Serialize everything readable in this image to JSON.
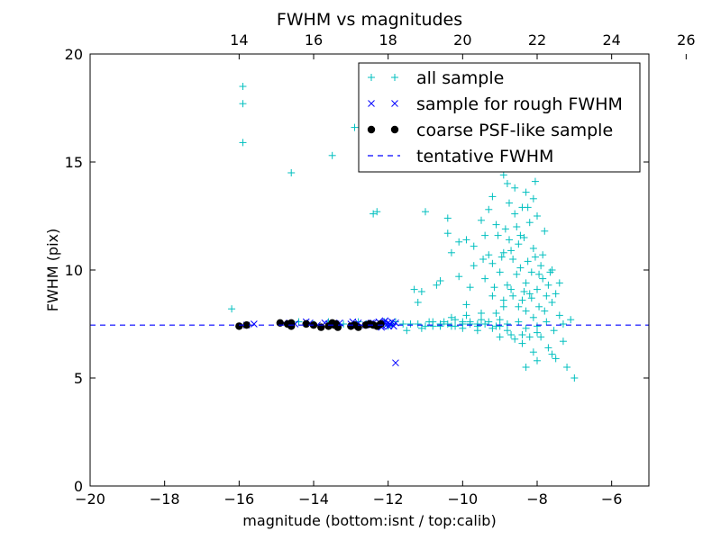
{
  "chart_data": {
    "type": "scatter",
    "title": "FWHM vs magnitudes",
    "xlabel": "magnitude (bottom:isnt / top:calib)",
    "ylabel": "FWHM (pix)",
    "xlim": [
      -20,
      -5
    ],
    "ylim": [
      0,
      20
    ],
    "x_ticks": [
      -20,
      -18,
      -16,
      -14,
      -12,
      -10,
      -8,
      -6
    ],
    "x_tick_labels": [
      "−20",
      "−18",
      "−16",
      "−14",
      "−12",
      "−10",
      "−8",
      "−6"
    ],
    "y_ticks": [
      0,
      5,
      10,
      15,
      20
    ],
    "y_tick_labels": [
      "0",
      "5",
      "10",
      "15",
      "20"
    ],
    "top_ticks": [
      14,
      16,
      18,
      20,
      22,
      24,
      26
    ],
    "top_tick_labels": [
      "14",
      "16",
      "18",
      "20",
      "22",
      "24",
      "26"
    ],
    "top_axis_offset": 30.0,
    "grid": false,
    "legend_position": "top-right",
    "series": [
      {
        "name": "all sample",
        "marker": "plus",
        "color": "#00bfbf",
        "points": [
          [
            -16.2,
            8.2
          ],
          [
            -15.9,
            18.5
          ],
          [
            -15.9,
            17.7
          ],
          [
            -15.9,
            15.9
          ],
          [
            -14.6,
            14.5
          ],
          [
            -13.5,
            15.3
          ],
          [
            -12.9,
            16.6
          ],
          [
            -12.4,
            12.6
          ],
          [
            -12.3,
            12.7
          ],
          [
            -11.8,
            7.6
          ],
          [
            -11.6,
            7.5
          ],
          [
            -11.4,
            7.5
          ],
          [
            -11.3,
            9.1
          ],
          [
            -11.2,
            8.5
          ],
          [
            -11.1,
            7.3
          ],
          [
            -11.0,
            12.7
          ],
          [
            -10.9,
            7.6
          ],
          [
            -10.8,
            7.4
          ],
          [
            -10.6,
            9.5
          ],
          [
            -10.6,
            7.5
          ],
          [
            -10.5,
            7.6
          ],
          [
            -10.4,
            12.4
          ],
          [
            -10.4,
            11.7
          ],
          [
            -10.3,
            10.8
          ],
          [
            -10.3,
            7.4
          ],
          [
            -10.2,
            7.7
          ],
          [
            -10.1,
            9.7
          ],
          [
            -10.0,
            7.5
          ],
          [
            -10.0,
            7.3
          ],
          [
            -9.9,
            8.4
          ],
          [
            -9.9,
            11.4
          ],
          [
            -9.8,
            7.6
          ],
          [
            -9.8,
            9.2
          ],
          [
            -9.7,
            10.2
          ],
          [
            -9.6,
            7.5
          ],
          [
            -9.6,
            7.2
          ],
          [
            -9.5,
            12.3
          ],
          [
            -9.5,
            8.0
          ],
          [
            -9.4,
            9.6
          ],
          [
            -9.4,
            11.6
          ],
          [
            -9.3,
            7.6
          ],
          [
            -9.3,
            10.7
          ],
          [
            -9.2,
            13.4
          ],
          [
            -9.2,
            8.8
          ],
          [
            -9.1,
            7.4
          ],
          [
            -9.1,
            12.1
          ],
          [
            -9.0,
            9.9
          ],
          [
            -9.0,
            7.7
          ],
          [
            -9.0,
            6.9
          ],
          [
            -8.95,
            10.6
          ],
          [
            -8.9,
            14.4
          ],
          [
            -8.9,
            8.3
          ],
          [
            -8.85,
            11.9
          ],
          [
            -8.8,
            7.5
          ],
          [
            -8.8,
            9.3
          ],
          [
            -8.75,
            13.1
          ],
          [
            -8.7,
            10.9
          ],
          [
            -8.7,
            7.0
          ],
          [
            -8.65,
            8.8
          ],
          [
            -8.6,
            12.6
          ],
          [
            -8.6,
            16.0
          ],
          [
            -8.55,
            9.8
          ],
          [
            -8.5,
            11.2
          ],
          [
            -8.5,
            7.6
          ],
          [
            -8.5,
            14.8
          ],
          [
            -8.45,
            10.1
          ],
          [
            -8.4,
            12.9
          ],
          [
            -8.4,
            8.6
          ],
          [
            -8.4,
            6.6
          ],
          [
            -8.35,
            11.5
          ],
          [
            -8.3,
            9.4
          ],
          [
            -8.3,
            13.6
          ],
          [
            -8.3,
            7.3
          ],
          [
            -8.25,
            10.4
          ],
          [
            -8.2,
            12.2
          ],
          [
            -8.2,
            8.9
          ],
          [
            -8.2,
            15.2
          ],
          [
            -8.15,
            9.9
          ],
          [
            -8.1,
            11.0
          ],
          [
            -8.1,
            7.8
          ],
          [
            -8.1,
            6.2
          ],
          [
            -8.05,
            10.6
          ],
          [
            -8.0,
            9.1
          ],
          [
            -8.0,
            12.5
          ],
          [
            -8.0,
            7.4
          ],
          [
            -7.95,
            8.3
          ],
          [
            -7.9,
            10.2
          ],
          [
            -7.9,
            6.9
          ],
          [
            -7.85,
            9.6
          ],
          [
            -7.8,
            8.1
          ],
          [
            -7.8,
            11.8
          ],
          [
            -7.75,
            7.6
          ],
          [
            -7.7,
            9.3
          ],
          [
            -7.7,
            6.4
          ],
          [
            -7.6,
            8.5
          ],
          [
            -7.6,
            10.0
          ],
          [
            -7.55,
            7.2
          ],
          [
            -7.5,
            8.9
          ],
          [
            -7.5,
            5.9
          ],
          [
            -7.4,
            7.9
          ],
          [
            -7.4,
            9.4
          ],
          [
            -7.3,
            7.5
          ],
          [
            -7.3,
            6.7
          ],
          [
            -7.2,
            5.5
          ],
          [
            -7.1,
            7.7
          ],
          [
            -7.0,
            5.0
          ],
          [
            -7.6,
            6.1
          ],
          [
            -8.3,
            5.5
          ],
          [
            -8.0,
            5.8
          ],
          [
            -8.6,
            16.8
          ],
          [
            -8.4,
            17.9
          ],
          [
            -8.2,
            18.2
          ],
          [
            -8.5,
            18.8
          ],
          [
            -8.7,
            15.6
          ],
          [
            -8.9,
            19.3
          ],
          [
            -8.8,
            14.0
          ],
          [
            -8.6,
            13.8
          ],
          [
            -9.3,
            12.8
          ],
          [
            -9.7,
            11.1
          ],
          [
            -10.1,
            11.3
          ],
          [
            -10.7,
            9.3
          ],
          [
            -11.1,
            9.0
          ],
          [
            -9.2,
            10.3
          ],
          [
            -8.1,
            13.3
          ],
          [
            -8.05,
            14.1
          ],
          [
            -8.25,
            12.9
          ],
          [
            -8.45,
            11.6
          ],
          [
            -8.65,
            10.5
          ],
          [
            -8.35,
            9.0
          ],
          [
            -8.15,
            8.7
          ],
          [
            -7.95,
            9.8
          ],
          [
            -7.85,
            10.7
          ],
          [
            -8.55,
            12.0
          ],
          [
            -8.75,
            11.4
          ],
          [
            -8.9,
            10.8
          ],
          [
            -9.05,
            11.6
          ],
          [
            -9.15,
            9.2
          ],
          [
            -9.45,
            10.5
          ],
          [
            -8.3,
            8.1
          ],
          [
            -8.5,
            8.3
          ],
          [
            -8.7,
            9.1
          ],
          [
            -8.9,
            8.6
          ],
          [
            -9.1,
            8.0
          ],
          [
            -7.75,
            8.8
          ],
          [
            -7.65,
            9.9
          ],
          [
            -8.0,
            7.1
          ],
          [
            -8.2,
            6.9
          ],
          [
            -8.4,
            7.0
          ],
          [
            -8.6,
            6.8
          ],
          [
            -8.8,
            7.2
          ],
          [
            -9.0,
            7.4
          ],
          [
            -9.2,
            7.3
          ],
          [
            -9.4,
            7.5
          ],
          [
            -9.6,
            7.4
          ],
          [
            -9.8,
            7.5
          ],
          [
            -10.0,
            7.6
          ],
          [
            -10.2,
            7.4
          ],
          [
            -10.4,
            7.5
          ],
          [
            -10.6,
            7.4
          ],
          [
            -10.8,
            7.6
          ],
          [
            -11.0,
            7.4
          ],
          [
            -11.2,
            7.5
          ],
          [
            -12.2,
            7.5
          ],
          [
            -12.1,
            7.6
          ],
          [
            -12.0,
            7.4
          ],
          [
            -11.9,
            7.5
          ],
          [
            -12.6,
            7.5
          ],
          [
            -12.8,
            7.6
          ],
          [
            -13.2,
            7.5
          ],
          [
            -13.6,
            7.6
          ],
          [
            -14.0,
            7.5
          ],
          [
            -14.4,
            7.6
          ],
          [
            -11.5,
            7.2
          ],
          [
            -10.3,
            7.8
          ],
          [
            -9.9,
            7.9
          ],
          [
            -9.5,
            7.7
          ]
        ]
      },
      {
        "name": "sample for rough FWHM",
        "marker": "x",
        "color": "#0000ff",
        "points": [
          [
            -15.8,
            7.45
          ],
          [
            -15.6,
            7.5
          ],
          [
            -14.8,
            7.55
          ],
          [
            -14.5,
            7.5
          ],
          [
            -14.2,
            7.6
          ],
          [
            -13.9,
            7.45
          ],
          [
            -13.6,
            7.5
          ],
          [
            -13.3,
            7.55
          ],
          [
            -13.0,
            7.5
          ],
          [
            -12.8,
            7.55
          ],
          [
            -12.6,
            7.45
          ],
          [
            -12.5,
            7.5
          ],
          [
            -12.4,
            7.55
          ],
          [
            -12.3,
            7.45
          ],
          [
            -12.25,
            7.6
          ],
          [
            -12.2,
            7.5
          ],
          [
            -12.15,
            7.4
          ],
          [
            -12.1,
            7.6
          ],
          [
            -12.05,
            7.45
          ],
          [
            -12.0,
            7.55
          ],
          [
            -11.95,
            7.5
          ],
          [
            -11.9,
            7.6
          ],
          [
            -11.85,
            7.4
          ],
          [
            -11.8,
            7.55
          ],
          [
            -12.18,
            7.35
          ],
          [
            -12.08,
            7.65
          ],
          [
            -11.98,
            7.4
          ],
          [
            -11.8,
            5.7
          ],
          [
            -13.7,
            7.55
          ],
          [
            -13.4,
            7.5
          ],
          [
            -12.95,
            7.6
          ],
          [
            -14.1,
            7.55
          ],
          [
            -12.35,
            7.45
          ],
          [
            -12.45,
            7.55
          ]
        ]
      },
      {
        "name": "coarse PSF-like sample",
        "marker": "dot",
        "color": "#000000",
        "points": [
          [
            -16.0,
            7.4
          ],
          [
            -15.8,
            7.45
          ],
          [
            -14.9,
            7.55
          ],
          [
            -14.7,
            7.5
          ],
          [
            -14.6,
            7.4
          ],
          [
            -14.6,
            7.55
          ],
          [
            -14.2,
            7.5
          ],
          [
            -14.0,
            7.45
          ],
          [
            -13.8,
            7.35
          ],
          [
            -13.6,
            7.4
          ],
          [
            -13.5,
            7.55
          ],
          [
            -13.45,
            7.45
          ],
          [
            -13.4,
            7.5
          ],
          [
            -13.0,
            7.4
          ],
          [
            -12.9,
            7.45
          ],
          [
            -12.8,
            7.35
          ],
          [
            -12.5,
            7.5
          ],
          [
            -12.4,
            7.45
          ],
          [
            -12.3,
            7.4
          ],
          [
            -12.2,
            7.5
          ],
          [
            -13.35,
            7.35
          ],
          [
            -12.6,
            7.45
          ]
        ]
      }
    ],
    "reference_line": {
      "name": "tentative FWHM",
      "y": 7.45,
      "style": "dashed",
      "color": "#0000ff"
    }
  }
}
